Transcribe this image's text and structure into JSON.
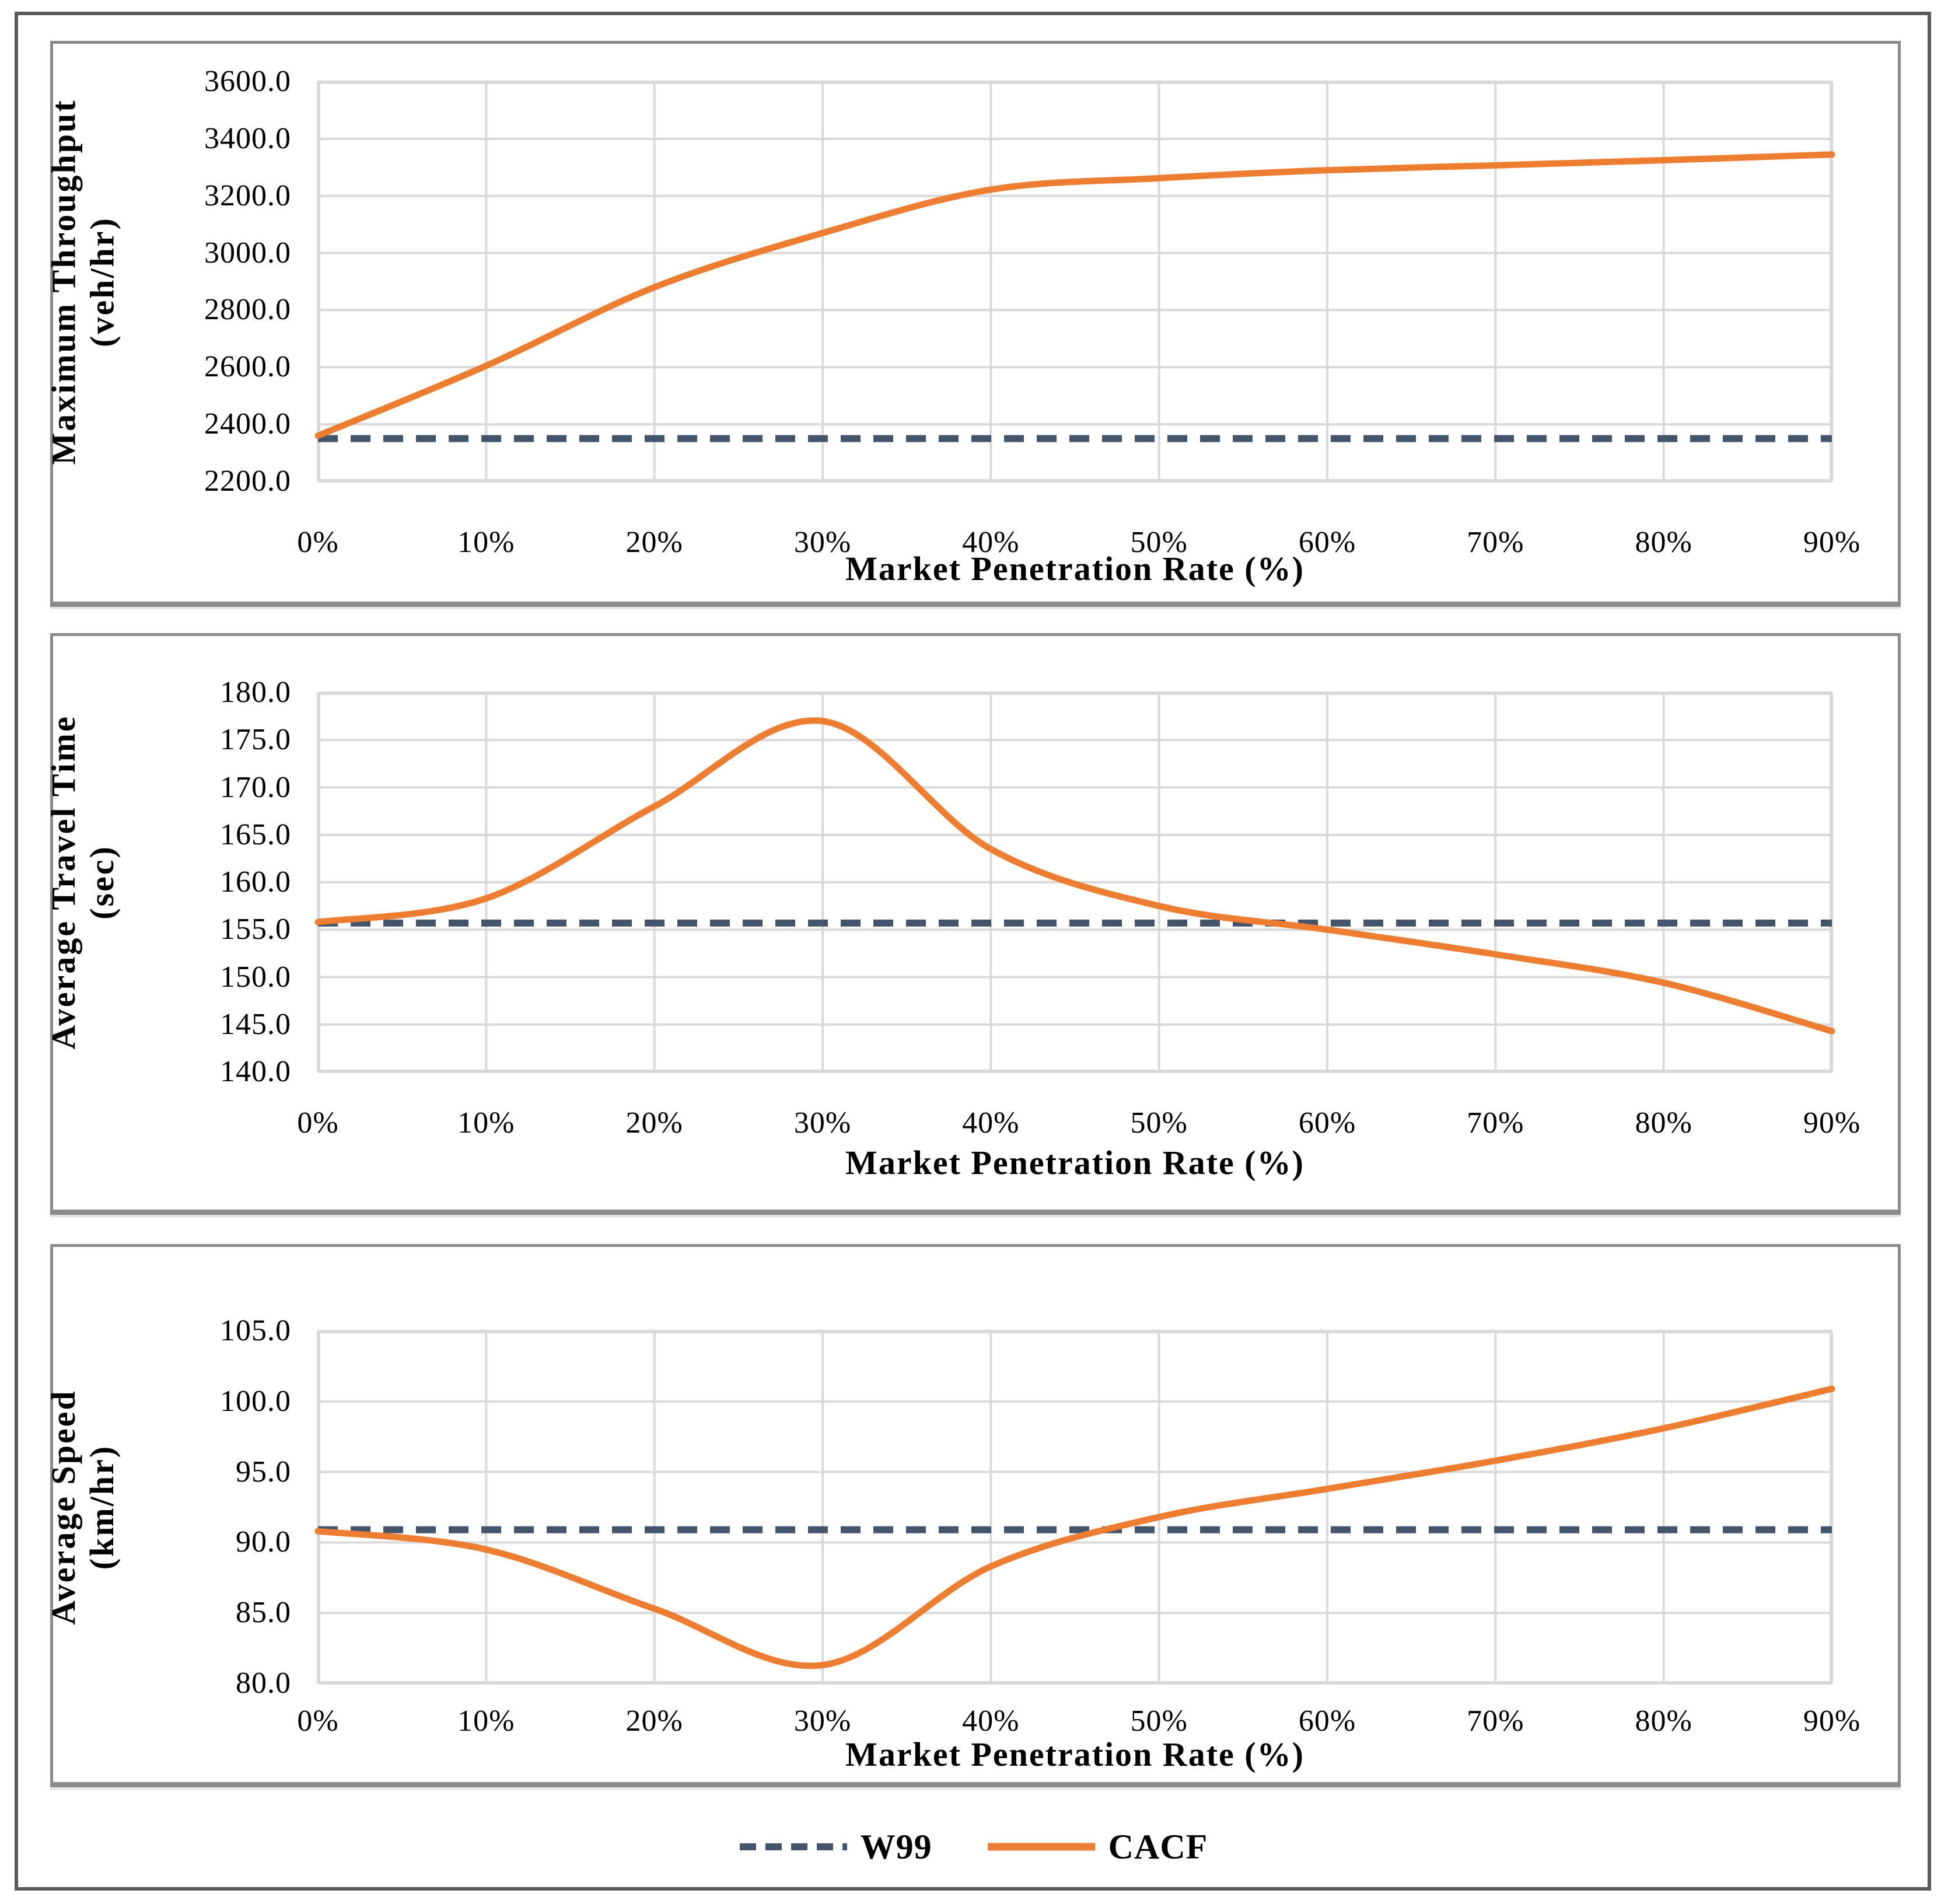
{
  "colors": {
    "w99": "#44546A",
    "cacf": "#ED7D31",
    "gridline": "#D9D9D9",
    "plot_border": "#D9D9D9",
    "panel_border": "#8A8A8A",
    "outer_border": "#595959",
    "text": "#000000"
  },
  "legend": {
    "items": [
      {
        "label": "W99",
        "style": "dashed"
      },
      {
        "label": "CACF",
        "style": "solid"
      }
    ],
    "position": "bottom-center"
  },
  "chart_data": [
    {
      "type": "line",
      "title": "",
      "ylabel": "Maximum Throughput (veh/hr)",
      "ylabel_line1": "Maximum Throughput",
      "ylabel_line2": "(veh/hr)",
      "xlabel": "Market Penetration Rate (%)",
      "x": [
        "0%",
        "10%",
        "20%",
        "30%",
        "40%",
        "50%",
        "60%",
        "70%",
        "80%",
        "90%"
      ],
      "ylim": [
        2200,
        3600
      ],
      "ytick_step": 200,
      "ytick_labels": [
        "3600.0",
        "3400.0",
        "3200.0",
        "3000.0",
        "2800.0",
        "2600.0",
        "2400.0",
        "2200.0"
      ],
      "grid": true,
      "series": [
        {
          "name": "W99",
          "style": "dashed",
          "color": "#44546A",
          "values": [
            2350,
            2350,
            2350,
            2350,
            2350,
            2350,
            2350,
            2350,
            2350,
            2350
          ]
        },
        {
          "name": "CACF",
          "style": "solid",
          "color": "#ED7D31",
          "values": [
            2360,
            2605,
            2880,
            3070,
            3222,
            3262,
            3290,
            3307,
            3325,
            3345
          ]
        }
      ]
    },
    {
      "type": "line",
      "title": "",
      "ylabel": "Average Travel Time (sec)",
      "ylabel_line1": "Average Travel Time",
      "ylabel_line2": "(sec)",
      "xlabel": "Market Penetration Rate (%)",
      "x": [
        "0%",
        "10%",
        "20%",
        "30%",
        "40%",
        "50%",
        "60%",
        "70%",
        "80%",
        "90%"
      ],
      "ylim": [
        140,
        180
      ],
      "ytick_step": 5,
      "ytick_labels": [
        "180.0",
        "175.0",
        "170.0",
        "165.0",
        "160.0",
        "155.0",
        "150.0",
        "145.0",
        "140.0"
      ],
      "grid": true,
      "series": [
        {
          "name": "W99",
          "style": "dashed",
          "color": "#44546A",
          "values": [
            155.7,
            155.7,
            155.7,
            155.7,
            155.7,
            155.7,
            155.7,
            155.7,
            155.7,
            155.7
          ]
        },
        {
          "name": "CACF",
          "style": "solid",
          "color": "#ED7D31",
          "values": [
            155.8,
            158.3,
            168.0,
            177.0,
            163.5,
            157.5,
            155.0,
            152.4,
            149.4,
            144.3
          ]
        }
      ]
    },
    {
      "type": "line",
      "title": "",
      "ylabel": "Average Speed (km/hr)",
      "ylabel_line1": "Average Speed",
      "ylabel_line2": "(km/hr)",
      "xlabel": "Market Penetration Rate (%)",
      "x": [
        "0%",
        "10%",
        "20%",
        "30%",
        "40%",
        "50%",
        "60%",
        "70%",
        "80%",
        "90%"
      ],
      "ylim": [
        80,
        105
      ],
      "ytick_step": 5,
      "ytick_labels": [
        "105.0",
        "100.0",
        "95.0",
        "90.0",
        "85.0",
        "80.0"
      ],
      "grid": true,
      "series": [
        {
          "name": "W99",
          "style": "dashed",
          "color": "#44546A",
          "values": [
            90.9,
            90.9,
            90.9,
            90.9,
            90.9,
            90.9,
            90.9,
            90.9,
            90.9,
            90.9
          ]
        },
        {
          "name": "CACF",
          "style": "solid",
          "color": "#ED7D31",
          "values": [
            90.8,
            89.5,
            85.3,
            81.3,
            88.3,
            91.8,
            93.8,
            95.8,
            98.1,
            100.9
          ]
        }
      ]
    }
  ]
}
